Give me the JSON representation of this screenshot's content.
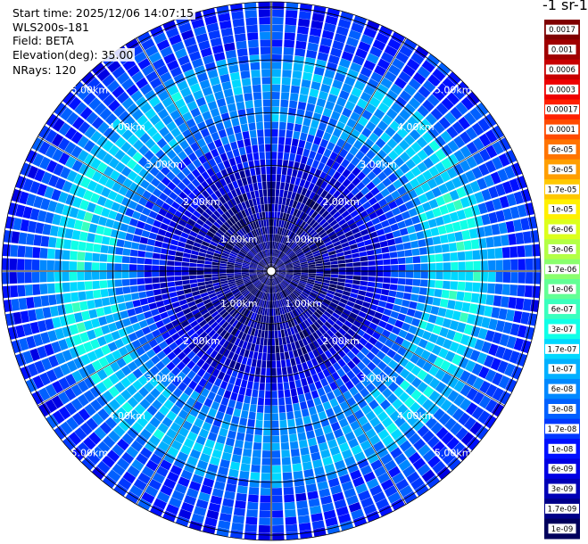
{
  "header": {
    "start_time": "Start time: 2025/12/06 14:07:15",
    "device": "WLS200s-181",
    "field": "Field: BETA",
    "elevation": "Elevation(deg): 35.00",
    "nrays": "NRays: 120"
  },
  "colorbar": {
    "title": "-1 sr-1",
    "labels": [
      "0.0017",
      "0.001",
      "0.0006",
      "0.0003",
      "0.00017",
      "0.0001",
      "6e-05",
      "3e-05",
      "1.7e-05",
      "1e-05",
      "6e-06",
      "3e-06",
      "1.7e-06",
      "1e-06",
      "6e-07",
      "3e-07",
      "1.7e-07",
      "1e-07",
      "6e-08",
      "3e-08",
      "1.7e-08",
      "1e-08",
      "6e-09",
      "3e-09",
      "1.7e-09",
      "1e-09"
    ],
    "colors": [
      "#7f0000",
      "#a00000",
      "#c80000",
      "#ee0000",
      "#ff2000",
      "#ff4a00",
      "#ff7400",
      "#ff9e00",
      "#ffc800",
      "#fff000",
      "#dcff1c",
      "#b3ff45",
      "#8aff6d",
      "#62ff95",
      "#39ffbe",
      "#10ffe7",
      "#00d8ff",
      "#00b0ff",
      "#0088ff",
      "#0060ff",
      "#0038ff",
      "#0010ff",
      "#0000e3",
      "#0000b6",
      "#000089",
      "#00005c"
    ]
  },
  "chart_data": {
    "type": "ppi",
    "field": "BETA",
    "elevation_deg": 35.0,
    "nrays": 120,
    "range_rings_km": [
      1,
      2,
      3,
      4,
      5
    ],
    "ring_labels": [
      "1.00km",
      "2.00km",
      "3.00km",
      "4.00km",
      "5.00km"
    ],
    "max_range_km": 5.1,
    "radial_profile_log10": [
      {
        "r_km": 0.0,
        "v": -8.8
      },
      {
        "r_km": 1.5,
        "v": -8.5
      },
      {
        "r_km": 2.3,
        "v": -7.9
      },
      {
        "r_km": 3.0,
        "v": -7.1
      },
      {
        "r_km": 3.8,
        "v": -6.8
      },
      {
        "r_km": 4.3,
        "v": -7.5
      },
      {
        "r_km": 5.1,
        "v": -7.9
      }
    ]
  }
}
